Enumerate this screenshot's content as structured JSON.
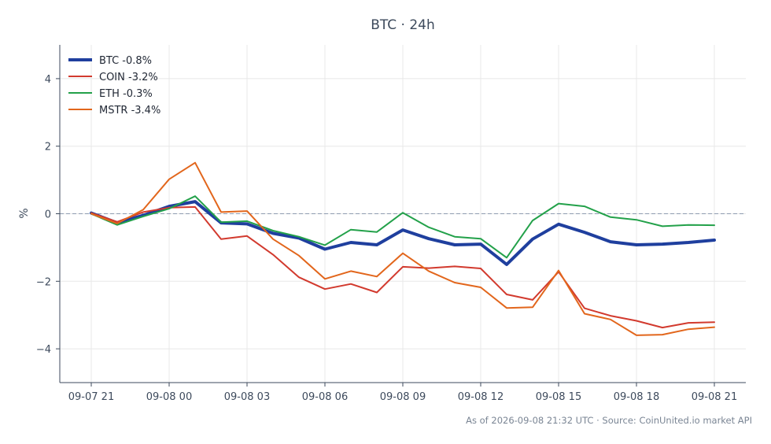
{
  "chart_data": {
    "type": "line",
    "title": "BTC · 24h",
    "xlabel": "",
    "ylabel": "%",
    "ylim": [
      -5,
      5
    ],
    "yticks": [
      4,
      2,
      0,
      -2,
      -4
    ],
    "ytick_labels": [
      "4",
      "2",
      "0",
      "−2",
      "−4"
    ],
    "x": [
      "09-07 21",
      "09-07 22",
      "09-07 23",
      "09-08 00",
      "09-08 01",
      "09-08 02",
      "09-08 03",
      "09-08 04",
      "09-08 05",
      "09-08 06",
      "09-08 07",
      "09-08 08",
      "09-08 09",
      "09-08 10",
      "09-08 11",
      "09-08 12",
      "09-08 13",
      "09-08 14",
      "09-08 15",
      "09-08 16",
      "09-08 17",
      "09-08 18",
      "09-08 19",
      "09-08 20",
      "09-08 21"
    ],
    "xtick_labels": [
      "09-07 21",
      "09-08 00",
      "09-08 03",
      "09-08 06",
      "09-08 09",
      "09-08 12",
      "09-08 15",
      "09-08 18",
      "09-08 21"
    ],
    "xtick_index": [
      0,
      3,
      6,
      9,
      12,
      15,
      18,
      21,
      24
    ],
    "grid": true,
    "zero_line": true,
    "legend_position": "top-left",
    "series": [
      {
        "name": "BTC -0.8%",
        "color": "#1f3f9e",
        "width": 4,
        "values": [
          0.02,
          -0.27,
          -0.05,
          0.22,
          0.36,
          -0.27,
          -0.3,
          -0.58,
          -0.72,
          -1.05,
          -0.85,
          -0.92,
          -0.48,
          -0.74,
          -0.92,
          -0.9,
          -1.5,
          -0.75,
          -0.31,
          -0.55,
          -0.83,
          -0.92,
          -0.9,
          -0.85,
          -0.78
        ]
      },
      {
        "name": "COIN -3.2%",
        "color": "#d23a2e",
        "width": 2,
        "values": [
          0.02,
          -0.24,
          0.05,
          0.18,
          0.2,
          -0.75,
          -0.66,
          -1.21,
          -1.88,
          -2.23,
          -2.08,
          -2.33,
          -1.57,
          -1.61,
          -1.56,
          -1.62,
          -2.39,
          -2.55,
          -1.72,
          -2.8,
          -3.02,
          -3.17,
          -3.37,
          -3.23,
          -3.21
        ]
      },
      {
        "name": "ETH -0.3%",
        "color": "#23a14a",
        "width": 2,
        "values": [
          0.0,
          -0.33,
          -0.08,
          0.15,
          0.52,
          -0.25,
          -0.22,
          -0.5,
          -0.68,
          -0.93,
          -0.47,
          -0.54,
          0.03,
          -0.4,
          -0.68,
          -0.74,
          -1.3,
          -0.2,
          0.3,
          0.22,
          -0.1,
          -0.18,
          -0.37,
          -0.33,
          -0.34
        ]
      },
      {
        "name": "MSTR -3.4%",
        "color": "#e2661c",
        "width": 2,
        "values": [
          0.0,
          -0.29,
          0.12,
          1.02,
          1.51,
          0.05,
          0.08,
          -0.75,
          -1.24,
          -1.93,
          -1.7,
          -1.86,
          -1.17,
          -1.7,
          -2.04,
          -2.18,
          -2.79,
          -2.77,
          -1.68,
          -2.96,
          -3.13,
          -3.6,
          -3.58,
          -3.42,
          -3.36
        ]
      }
    ]
  },
  "footer": {
    "source_text": "As of 2026-09-08 21:32 UTC · Source: CoinUnited.io market API"
  }
}
